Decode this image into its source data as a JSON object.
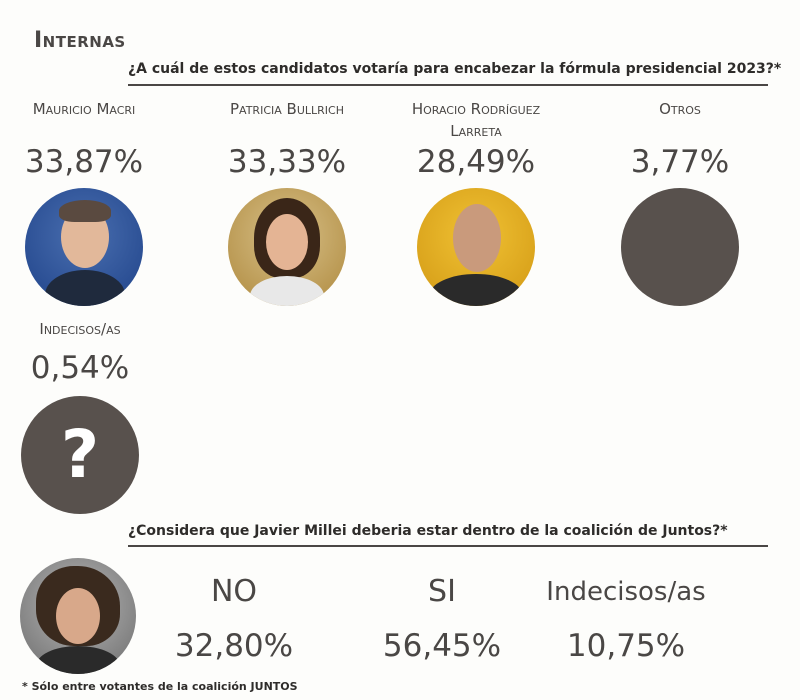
{
  "header": {
    "section_title": "Internas"
  },
  "chart_data": [
    {
      "type": "bar",
      "title": "¿A cuál de estos candidatos votaría para encabezar la fórmula presidencial 2023?*",
      "categories": [
        "Mauricio Macri",
        "Patricia Bullrich",
        "Horacio Rodríguez Larreta",
        "Otros",
        "Indecisos/as"
      ],
      "value_labels": [
        "33,87%",
        "33,33%",
        "28,49%",
        "3,77%",
        "0,54%"
      ],
      "values": [
        33.87,
        33.33,
        28.49,
        3.77,
        0.54
      ]
    },
    {
      "type": "bar",
      "title": "¿Considera que Javier Millei deberia estar dentro de la coalición de Juntos?*",
      "categories": [
        "NO",
        "SI",
        "Indecisos/as"
      ],
      "value_labels": [
        "32,80%",
        "56,45%",
        "10,75%"
      ],
      "values": [
        32.8,
        56.45,
        10.75
      ]
    }
  ],
  "undecided_symbol": "?",
  "footnote": "* Sólo entre votantes de la coalición JUNTOS",
  "colors": {
    "text": "#4a4745",
    "placeholder_circle": "#58514d"
  }
}
